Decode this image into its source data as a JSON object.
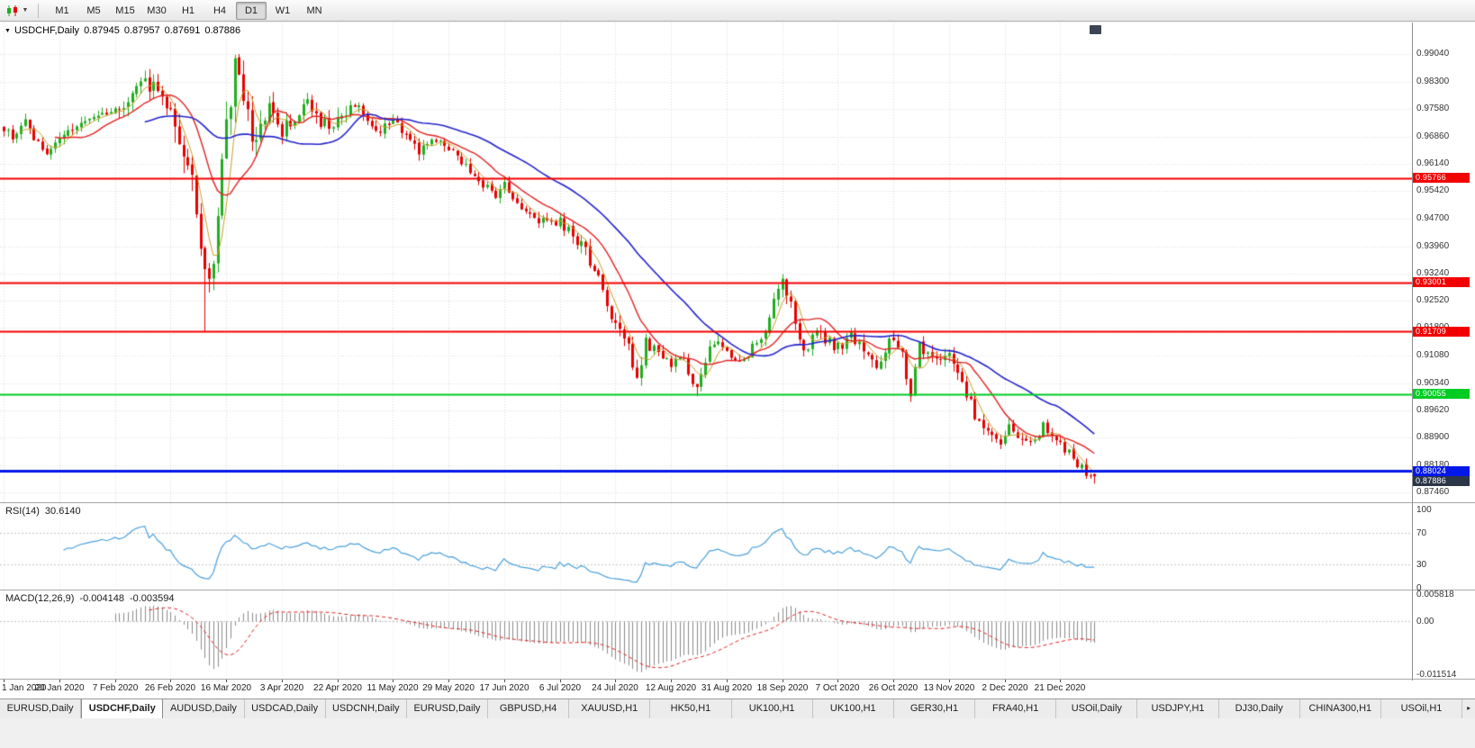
{
  "icons": {
    "chart_collapse": "▼",
    "chart_type_dropdown": "▼",
    "tab_scroll": "▸"
  },
  "toolbar": {
    "timeframes": [
      {
        "label": "M1",
        "active": false
      },
      {
        "label": "M5",
        "active": false
      },
      {
        "label": "M15",
        "active": false
      },
      {
        "label": "M30",
        "active": false
      },
      {
        "label": "H1",
        "active": false
      },
      {
        "label": "H4",
        "active": false
      },
      {
        "label": "D1",
        "active": true
      },
      {
        "label": "W1",
        "active": false
      },
      {
        "label": "MN",
        "active": false
      }
    ]
  },
  "chart": {
    "symbol": "USDCHF,Daily",
    "ohlc": {
      "open": "0.87945",
      "high": "0.87957",
      "low": "0.87691",
      "close": "0.87886"
    },
    "price_axis_ticks": [
      "0.99040",
      "0.98300",
      "0.97580",
      "0.96860",
      "0.96140",
      "0.95420",
      "0.94700",
      "0.93960",
      "0.93240",
      "0.92520",
      "0.91800",
      "0.91080",
      "0.90340",
      "0.89620",
      "0.88900",
      "0.88180",
      "0.87460"
    ],
    "hlines": [
      {
        "value": 0.95766,
        "label": "0.95766",
        "color": "#f20000",
        "width": 2
      },
      {
        "value": 0.93001,
        "label": "0.93001",
        "color": "#f20000",
        "width": 2
      },
      {
        "value": 0.91709,
        "label": "0.91709",
        "color": "#f20000",
        "width": 2
      },
      {
        "value": 0.90055,
        "label": "0.90055",
        "color": "#00cc22",
        "width": 2
      },
      {
        "value": 0.88024,
        "label": "0.88024",
        "color": "#0018e8",
        "width": 3
      }
    ],
    "current_price_tag": {
      "label": "0.87886",
      "bg": "#2b3648"
    },
    "colors": {
      "bull": "#1fae1f",
      "bear": "#e60000",
      "grid": "#dadada",
      "level": "#c6c6c6"
    }
  },
  "rsi": {
    "name": "RSI(14)",
    "value": "30.6140",
    "axis": [
      "100",
      "70",
      "30",
      "0"
    ],
    "levels": [
      70,
      30
    ],
    "color": "#4aa0dc",
    "period": 14
  },
  "macd": {
    "name": "MACD(12,26,9)",
    "main_value": "-0.004148",
    "signal_value": "-0.003594",
    "axis": [
      "0.005818",
      "0.00",
      "-0.011514"
    ],
    "hist_color": "#8c8c8c",
    "signal_color": "#e32222"
  },
  "date_axis": [
    "1 Jan 2020",
    "20 Jan 2020",
    "7 Feb 2020",
    "26 Feb 2020",
    "16 Mar 2020",
    "3 Apr 2020",
    "22 Apr 2020",
    "11 May 2020",
    "29 May 2020",
    "17 Jun 2020",
    "6 Jul 2020",
    "24 Jul 2020",
    "12 Aug 2020",
    "31 Aug 2020",
    "18 Sep 2020",
    "7 Oct 2020",
    "26 Oct 2020",
    "13 Nov 2020",
    "2 Dec 2020",
    "21 Dec 2020"
  ],
  "tabs": [
    {
      "label": "EURUSD,Daily",
      "active": false
    },
    {
      "label": "USDCHF,Daily",
      "active": true
    },
    {
      "label": "AUDUSD,Daily",
      "active": false
    },
    {
      "label": "USDCAD,Daily",
      "active": false
    },
    {
      "label": "USDCNH,Daily",
      "active": false
    },
    {
      "label": "EURUSD,Daily",
      "active": false
    },
    {
      "label": "GBPUSD,H4",
      "active": false
    },
    {
      "label": "XAUUSD,H1",
      "active": false
    },
    {
      "label": "HK50,H1",
      "active": false
    },
    {
      "label": "UK100,H1",
      "active": false
    },
    {
      "label": "UK100,H1",
      "active": false
    },
    {
      "label": "GER30,H1",
      "active": false
    },
    {
      "label": "FRA40,H1",
      "active": false
    },
    {
      "label": "USOil,Daily",
      "active": false
    },
    {
      "label": "USDJPY,H1",
      "active": false
    },
    {
      "label": "DJ30,Daily",
      "active": false
    },
    {
      "label": "CHINA300,H1",
      "active": false
    },
    {
      "label": "USOil,H1",
      "active": false
    }
  ],
  "chart_data": {
    "type": "candlestick",
    "symbol": "USDCHF",
    "timeframe": "Daily",
    "title": "USDCHF,Daily 0.87945 0.87957 0.87691 0.87886",
    "x_range": [
      "1 Jan 2020",
      "30 Dec 2020"
    ],
    "y_range": [
      0.8746,
      0.9904
    ],
    "num_candles": 256,
    "candles_per_tick": 13,
    "last_ohlc": {
      "open": 0.87945,
      "high": 0.87957,
      "low": 0.87691,
      "close": 0.87886
    },
    "close_anchors": [
      [
        0,
        0.9708
      ],
      [
        2,
        0.9688
      ],
      [
        5,
        0.9722
      ],
      [
        8,
        0.9665
      ],
      [
        10,
        0.9638
      ],
      [
        12,
        0.9668
      ],
      [
        13,
        0.9682
      ],
      [
        17,
        0.9702
      ],
      [
        21,
        0.9736
      ],
      [
        26,
        0.9762
      ],
      [
        30,
        0.9788
      ],
      [
        33,
        0.983
      ],
      [
        36,
        0.9812
      ],
      [
        39,
        0.9762
      ],
      [
        42,
        0.966
      ],
      [
        44,
        0.9565
      ],
      [
        46,
        0.938
      ],
      [
        48,
        0.9275
      ],
      [
        50,
        0.949
      ],
      [
        52,
        0.97
      ],
      [
        54,
        0.9875
      ],
      [
        56,
        0.979
      ],
      [
        58,
        0.9655
      ],
      [
        60,
        0.9705
      ],
      [
        62,
        0.9762
      ],
      [
        65,
        0.9705
      ],
      [
        68,
        0.973
      ],
      [
        71,
        0.9778
      ],
      [
        74,
        0.9712
      ],
      [
        78,
        0.9736
      ],
      [
        82,
        0.9768
      ],
      [
        85,
        0.9732
      ],
      [
        88,
        0.97
      ],
      [
        91,
        0.9732
      ],
      [
        94,
        0.9692
      ],
      [
        97,
        0.9638
      ],
      [
        100,
        0.9684
      ],
      [
        104,
        0.9652
      ],
      [
        108,
        0.9606
      ],
      [
        112,
        0.9556
      ],
      [
        115,
        0.9524
      ],
      [
        117,
        0.9562
      ],
      [
        120,
        0.9514
      ],
      [
        124,
        0.9472
      ],
      [
        127,
        0.9452
      ],
      [
        130,
        0.9464
      ],
      [
        133,
        0.9424
      ],
      [
        136,
        0.9384
      ],
      [
        139,
        0.9304
      ],
      [
        141,
        0.9246
      ],
      [
        143,
        0.9186
      ],
      [
        146,
        0.9124
      ],
      [
        148,
        0.9058
      ],
      [
        150,
        0.9138
      ],
      [
        152,
        0.9122
      ],
      [
        154,
        0.9102
      ],
      [
        156,
        0.9084
      ],
      [
        158,
        0.9112
      ],
      [
        160,
        0.9064
      ],
      [
        162,
        0.9022
      ],
      [
        164,
        0.9098
      ],
      [
        166,
        0.9142
      ],
      [
        169,
        0.9112
      ],
      [
        172,
        0.9084
      ],
      [
        175,
        0.9132
      ],
      [
        178,
        0.9182
      ],
      [
        180,
        0.9242
      ],
      [
        182,
        0.9296
      ],
      [
        184,
        0.9252
      ],
      [
        186,
        0.9152
      ],
      [
        188,
        0.9122
      ],
      [
        190,
        0.9178
      ],
      [
        192,
        0.9152
      ],
      [
        195,
        0.9132
      ],
      [
        198,
        0.9162
      ],
      [
        200,
        0.9132
      ],
      [
        202,
        0.9102
      ],
      [
        204,
        0.9064
      ],
      [
        206,
        0.9128
      ],
      [
        208,
        0.9148
      ],
      [
        210,
        0.9122
      ],
      [
        212,
        0.9002
      ],
      [
        214,
        0.9128
      ],
      [
        216,
        0.9112
      ],
      [
        218,
        0.9098
      ],
      [
        220,
        0.9118
      ],
      [
        222,
        0.9082
      ],
      [
        224,
        0.9042
      ],
      [
        226,
        0.8982
      ],
      [
        228,
        0.8922
      ],
      [
        230,
        0.8902
      ],
      [
        233,
        0.8882
      ],
      [
        235,
        0.8918
      ],
      [
        237,
        0.8898
      ],
      [
        239,
        0.8872
      ],
      [
        241,
        0.8892
      ],
      [
        243,
        0.8918
      ],
      [
        245,
        0.8898
      ],
      [
        247,
        0.8872
      ],
      [
        249,
        0.8852
      ],
      [
        251,
        0.8822
      ],
      [
        253,
        0.8802
      ],
      [
        255,
        0.87886
      ]
    ],
    "key_extremes": {
      "highs": {
        "33": 0.9839,
        "54": 0.9902,
        "182": 0.9302
      },
      "lows": {
        "47": 0.9172,
        "162": 0.9,
        "212": 0.8985
      }
    },
    "volatility_zones": [
      [
        26,
        39,
        1.5
      ],
      [
        40,
        60,
        2.8
      ],
      [
        61,
        80,
        1.6
      ],
      [
        130,
        150,
        1.3
      ],
      [
        176,
        196,
        1.3
      ],
      [
        200,
        232,
        1.3
      ]
    ],
    "moving_averages": [
      {
        "period": 5,
        "color": "#c9a227"
      },
      {
        "period": 13,
        "color": "#e32222"
      },
      {
        "period": 34,
        "color": "#2424cc"
      }
    ],
    "indicators": [
      {
        "name": "RSI",
        "period": 14,
        "last": 30.614
      },
      {
        "name": "MACD",
        "fast": 12,
        "slow": 26,
        "signal": 9,
        "last_main": -0.004148,
        "last_signal": -0.003594
      }
    ]
  }
}
